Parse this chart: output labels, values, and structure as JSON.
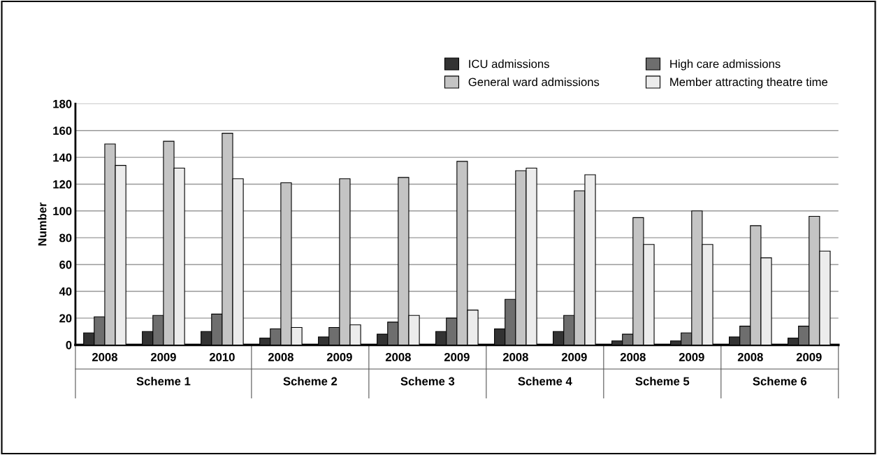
{
  "chart_data": {
    "type": "bar",
    "ylabel": "Number",
    "categories": [
      "2008",
      "2009",
      "2010",
      "2008",
      "2009",
      "2008",
      "2009",
      "2008",
      "2009",
      "2008",
      "2009",
      "2008",
      "2009"
    ],
    "annotations": [
      "Scheme 1",
      "Scheme 2",
      "Scheme 3",
      "Scheme 4",
      "Scheme 5",
      "Scheme 6"
    ],
    "series": [
      {
        "name": "ICU admissions",
        "color": "#333333",
        "values": [
          9,
          10,
          10,
          5,
          6,
          8,
          10,
          12,
          10,
          3,
          3,
          6,
          5
        ]
      },
      {
        "name": "High care admissions",
        "color": "#6e6e6e",
        "values": [
          21,
          22,
          23,
          12,
          13,
          17,
          20,
          34,
          22,
          8,
          9,
          14,
          14
        ]
      },
      {
        "name": "General ward admissions",
        "color": "#c4c4c4",
        "values": [
          150,
          152,
          158,
          121,
          124,
          125,
          137,
          130,
          115,
          95,
          100,
          89,
          96
        ]
      },
      {
        "name": "Member attracting theatre time",
        "color": "#ececec",
        "values": [
          134,
          132,
          124,
          13,
          15,
          22,
          26,
          132,
          127,
          75,
          75,
          65,
          70
        ]
      }
    ],
    "ylim": [
      0,
      180
    ],
    "yticks": [
      0,
      20,
      40,
      60,
      80,
      100,
      120,
      140,
      160,
      180
    ],
    "grid": "y",
    "legend": "top right"
  }
}
